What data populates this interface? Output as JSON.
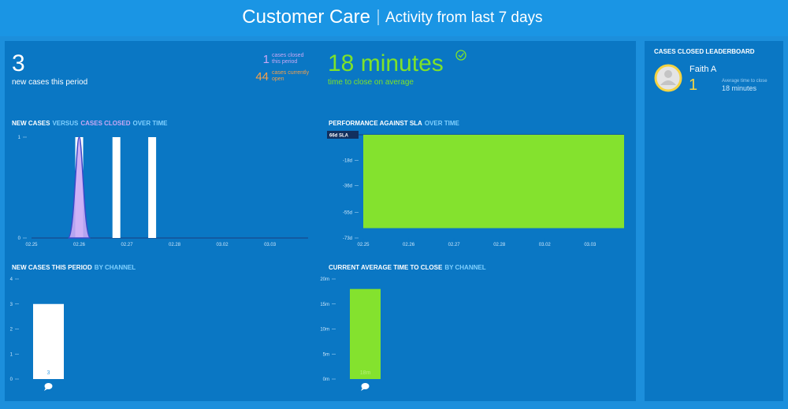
{
  "header": {
    "title": "Customer Care",
    "subtitle": "Activity from last 7 days"
  },
  "stats": {
    "new_cases": {
      "value": 3,
      "label": "new cases this period"
    },
    "closed": {
      "value": 1,
      "label": [
        "cases closed",
        "this period"
      ],
      "color": "#c9a8f5"
    },
    "open": {
      "value": 44,
      "label": [
        "cases currently",
        "open"
      ],
      "color": "#f5a04a"
    },
    "time_to_close": {
      "value": "18 minutes",
      "label": "time to close on average",
      "color": "#7ee22a"
    }
  },
  "chart_data": [
    {
      "type": "spike",
      "title_parts": [
        {
          "text": "NEW CASES",
          "color": "#ffffff"
        },
        {
          "text": "VERSUS",
          "color": "#7fd0ff"
        },
        {
          "text": "CASES CLOSED",
          "color": "#c9a8f5"
        },
        {
          "text": "OVER TIME",
          "color": "#7fd0ff"
        }
      ],
      "xlim": [
        0,
        5.8
      ],
      "xticks": [
        {
          "value": 0,
          "label": "02.25"
        },
        {
          "value": 1,
          "label": "02.26"
        },
        {
          "value": 2,
          "label": "02.27"
        },
        {
          "value": 3,
          "label": "02.28"
        },
        {
          "value": 4,
          "label": "03.02"
        },
        {
          "value": 5,
          "label": "03.03"
        }
      ],
      "ylim": [
        0,
        1
      ],
      "yticks": [
        0,
        1
      ],
      "series": [
        {
          "style": "bar",
          "color": "#ffffff",
          "x": [
            1,
            1.78,
            2.53
          ],
          "values": [
            1,
            1,
            1
          ]
        },
        {
          "style": "spike",
          "color": "#c9a8f5",
          "x": [
            1
          ],
          "values": [
            1
          ]
        }
      ]
    },
    {
      "type": "area",
      "title_parts": [
        {
          "text": "PERFORMANCE AGAINST SLA",
          "color": "#ffffff"
        },
        {
          "text": "OVER TIME",
          "color": "#7fd0ff"
        }
      ],
      "xlim": [
        0,
        5.75
      ],
      "xticks": [
        {
          "value": 0,
          "label": "02.25"
        },
        {
          "value": 1,
          "label": "02.26"
        },
        {
          "value": 2,
          "label": "02.27"
        },
        {
          "value": 3,
          "label": "02.28"
        },
        {
          "value": 4,
          "label": "03.02"
        },
        {
          "value": 5,
          "label": "03.03"
        }
      ],
      "ylim": [
        -73,
        0
      ],
      "yticks": [
        {
          "value": -18,
          "label": "-18d"
        },
        {
          "value": -36,
          "label": "-36d"
        },
        {
          "value": -55,
          "label": "-55d"
        },
        {
          "value": -73,
          "label": "-73d"
        }
      ],
      "sla_label": "66d SLA",
      "series": [
        {
          "color": "#84e22e",
          "x": [
            0,
            5.75
          ],
          "values": [
            -66,
            -66
          ]
        }
      ]
    },
    {
      "type": "bar",
      "title_parts": [
        {
          "text": "NEW CASES THIS PERIOD",
          "color": "#ffffff"
        },
        {
          "text": "BY CHANNEL",
          "color": "#7fd0ff"
        }
      ],
      "categories": [
        null
      ],
      "values": [
        3
      ],
      "value_labels": [
        "3"
      ],
      "color": "#ffffff",
      "label_color": "#3aa0e8",
      "ylim": [
        0,
        4
      ],
      "yticks": [
        0,
        1,
        2,
        3,
        4
      ]
    },
    {
      "type": "bar",
      "title_parts": [
        {
          "text": "CURRENT AVERAGE TIME TO CLOSE",
          "color": "#ffffff"
        },
        {
          "text": "BY CHANNEL",
          "color": "#7fd0ff"
        }
      ],
      "categories": [
        null
      ],
      "values": [
        18
      ],
      "value_labels": [
        "18m"
      ],
      "color": "#84e22e",
      "label_color": "#b8f07a",
      "ylim": [
        0,
        20
      ],
      "yticks": [
        {
          "value": 0,
          "label": "0m"
        },
        {
          "value": 5,
          "label": "5m"
        },
        {
          "value": 10,
          "label": "10m"
        },
        {
          "value": 15,
          "label": "15m"
        },
        {
          "value": 20,
          "label": "20m"
        }
      ]
    }
  ],
  "leaderboard": {
    "title": "CASES CLOSED LEADERBOARD",
    "entries": [
      {
        "name": "Faith A",
        "closed": 1,
        "avg_label": "Average time to close",
        "avg_time": "18 minutes"
      }
    ]
  }
}
